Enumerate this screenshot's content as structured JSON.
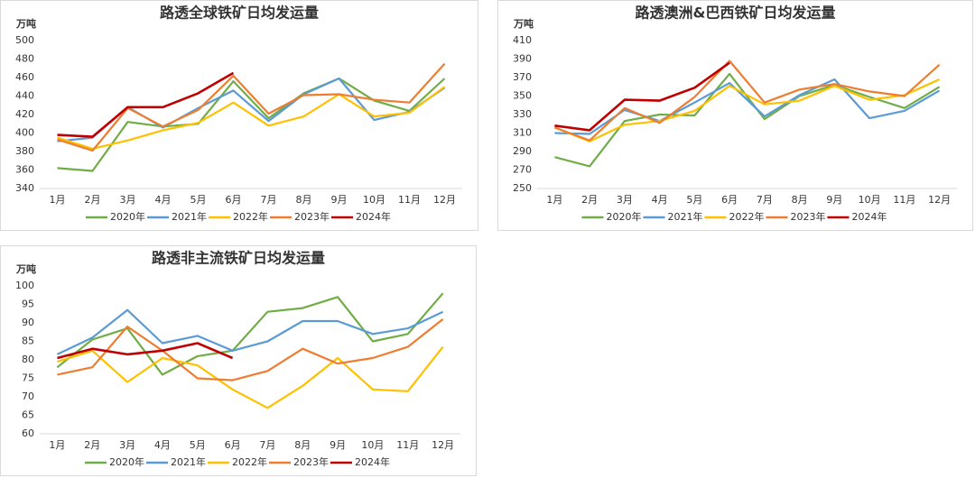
{
  "chart_data": [
    {
      "type": "line",
      "title": "路透全球铁矿日均发运量",
      "unit": "万吨",
      "categories": [
        "1月",
        "2月",
        "3月",
        "4月",
        "5月",
        "6月",
        "7月",
        "8月",
        "9月",
        "10月",
        "11月",
        "12月"
      ],
      "ylim": [
        340,
        500
      ],
      "yticks": [
        340,
        360,
        380,
        400,
        420,
        440,
        460,
        480,
        500
      ],
      "series": [
        {
          "name": "2020年",
          "color": "#70ad47",
          "values": [
            362,
            359,
            412,
            407,
            410,
            456,
            416,
            443,
            459,
            435,
            424,
            459
          ]
        },
        {
          "name": "2021年",
          "color": "#5b9bd5",
          "values": [
            391,
            395,
            428,
            406,
            427,
            446,
            413,
            442,
            459,
            414,
            423,
            449
          ]
        },
        {
          "name": "2022年",
          "color": "#ffc000",
          "values": [
            395,
            383,
            392,
            403,
            411,
            433,
            408,
            418,
            442,
            418,
            422,
            450
          ]
        },
        {
          "name": "2023年",
          "color": "#ed7d31",
          "values": [
            393,
            381,
            427,
            407,
            425,
            462,
            421,
            441,
            442,
            436,
            433,
            475
          ]
        },
        {
          "name": "2024年",
          "color": "#c00000",
          "values": [
            398,
            396,
            428,
            428,
            443,
            465,
            null,
            null,
            null,
            null,
            null,
            null
          ]
        }
      ]
    },
    {
      "type": "line",
      "title": "路透澳洲&巴西铁矿日均发运量",
      "unit": "万吨",
      "categories": [
        "1月",
        "2月",
        "3月",
        "4月",
        "5月",
        "6月",
        "7月",
        "8月",
        "9月",
        "10月",
        "11月",
        "12月"
      ],
      "ylim": [
        250,
        410
      ],
      "yticks": [
        250,
        270,
        290,
        310,
        330,
        350,
        370,
        390,
        410
      ],
      "series": [
        {
          "name": "2020年",
          "color": "#70ad47",
          "values": [
            284,
            274,
            323,
            330,
            329,
            374,
            325,
            350,
            362,
            349,
            337,
            360
          ]
        },
        {
          "name": "2021年",
          "color": "#5b9bd5",
          "values": [
            310,
            309,
            335,
            323,
            343,
            364,
            328,
            351,
            368,
            326,
            334,
            356
          ]
        },
        {
          "name": "2022年",
          "color": "#ffc000",
          "values": [
            316,
            301,
            319,
            323,
            334,
            361,
            341,
            345,
            361,
            346,
            351,
            368
          ]
        },
        {
          "name": "2023年",
          "color": "#ed7d31",
          "values": [
            316,
            302,
            337,
            321,
            349,
            388,
            343,
            357,
            363,
            355,
            350,
            384
          ]
        },
        {
          "name": "2024年",
          "color": "#c00000",
          "values": [
            318,
            313,
            346,
            345,
            359,
            386,
            null,
            null,
            null,
            null,
            null,
            null
          ]
        }
      ]
    },
    {
      "type": "line",
      "title": "路透非主流铁矿日均发运量",
      "unit": "万吨",
      "categories": [
        "1月",
        "2月",
        "3月",
        "4月",
        "5月",
        "6月",
        "7月",
        "8月",
        "9月",
        "10月",
        "11月",
        "12月"
      ],
      "ylim": [
        60,
        100
      ],
      "yticks": [
        60,
        65,
        70,
        75,
        80,
        85,
        90,
        95,
        100
      ],
      "series": [
        {
          "name": "2020年",
          "color": "#70ad47",
          "values": [
            78,
            85.5,
            88.5,
            76,
            81,
            82.5,
            93,
            94,
            97,
            85,
            87,
            98
          ]
        },
        {
          "name": "2021年",
          "color": "#5b9bd5",
          "values": [
            81.5,
            86,
            93.5,
            84.5,
            86.5,
            82.5,
            85,
            90.5,
            90.5,
            87,
            88.5,
            93
          ]
        },
        {
          "name": "2022年",
          "color": "#ffc000",
          "values": [
            79.5,
            82.5,
            74,
            80.5,
            78.5,
            72,
            67,
            73,
            80.5,
            72,
            71.5,
            83.5
          ]
        },
        {
          "name": "2023年",
          "color": "#ed7d31",
          "values": [
            76,
            78,
            89,
            82.5,
            75,
            74.5,
            77,
            83,
            79,
            80.5,
            83.5,
            91
          ]
        },
        {
          "name": "2024年",
          "color": "#c00000",
          "values": [
            80.5,
            83,
            81.5,
            82.5,
            84.5,
            80.5,
            null,
            null,
            null,
            null,
            null,
            null
          ]
        }
      ]
    }
  ]
}
